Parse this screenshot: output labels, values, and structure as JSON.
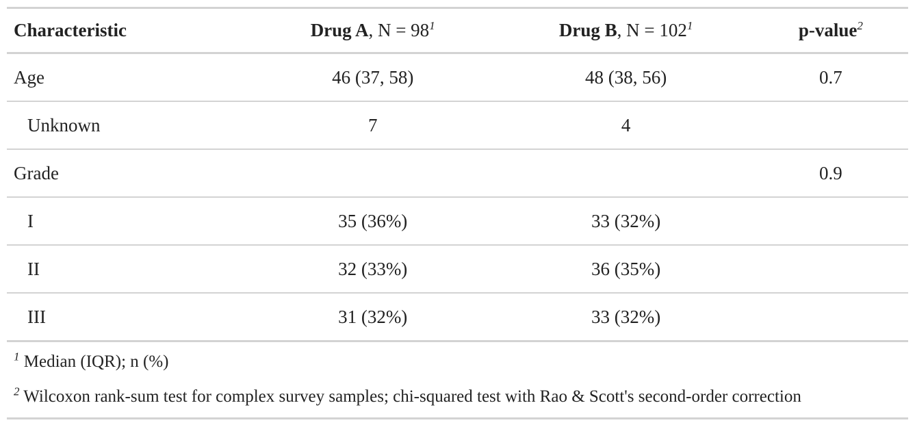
{
  "header": {
    "characteristic": "Characteristic",
    "drug_a_name": "Drug A",
    "drug_a_n": ", N = 98",
    "drug_a_sup": "1",
    "drug_b_name": "Drug B",
    "drug_b_n": ", N = 102",
    "drug_b_sup": "1",
    "pvalue": "p-value",
    "pvalue_sup": "2"
  },
  "rows": [
    {
      "label": "Age",
      "drug_a": "46 (37, 58)",
      "drug_b": "48 (38, 56)",
      "pvalue": "0.7"
    },
    {
      "label": "Unknown",
      "drug_a": "7",
      "drug_b": "4",
      "pvalue": ""
    },
    {
      "label": "Grade",
      "drug_a": "",
      "drug_b": "",
      "pvalue": "0.9"
    },
    {
      "label": "I",
      "drug_a": "35 (36%)",
      "drug_b": "33 (32%)",
      "pvalue": ""
    },
    {
      "label": "II",
      "drug_a": "32 (33%)",
      "drug_b": "36 (35%)",
      "pvalue": ""
    },
    {
      "label": "III",
      "drug_a": "31 (32%)",
      "drug_b": "33 (32%)",
      "pvalue": ""
    }
  ],
  "footnotes": [
    {
      "marker": "1",
      "text": " Median (IQR); n (%)"
    },
    {
      "marker": "2",
      "text": " Wilcoxon rank-sum test for complex survey samples; chi-squared test with Rao & Scott's second-order correction"
    }
  ]
}
